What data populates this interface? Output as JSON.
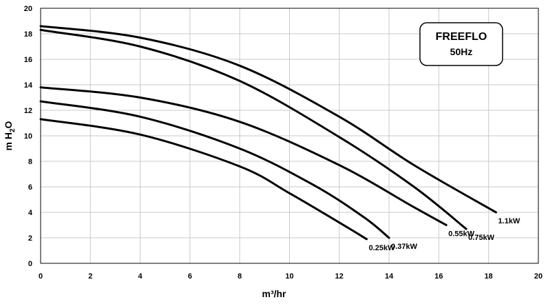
{
  "chart_data": {
    "type": "line",
    "title_box": {
      "line1": "FREEFLO",
      "line2": "50Hz"
    },
    "xlabel": "m³/hr",
    "ylabel": {
      "prefix": "m H",
      "sub": "2",
      "suffix": "O"
    },
    "xlim": [
      0,
      20
    ],
    "ylim": [
      0,
      20
    ],
    "xticks": [
      0,
      2,
      4,
      6,
      8,
      10,
      12,
      14,
      16,
      18,
      20
    ],
    "yticks": [
      0,
      2,
      4,
      6,
      8,
      10,
      12,
      14,
      16,
      18,
      20
    ],
    "grid": true,
    "series": [
      {
        "name": "1.1kW",
        "x": [
          0,
          4,
          8,
          12,
          15,
          18.3
        ],
        "y": [
          18.6,
          17.7,
          15.5,
          11.5,
          7.7,
          4.0
        ]
      },
      {
        "name": "0.75kW",
        "x": [
          0,
          4,
          8,
          12,
          15,
          17.1
        ],
        "y": [
          18.3,
          17.0,
          14.3,
          9.9,
          6.0,
          2.7
        ]
      },
      {
        "name": "0.55kW",
        "x": [
          0,
          4,
          8,
          12,
          15,
          16.3
        ],
        "y": [
          13.8,
          13.0,
          11.1,
          7.7,
          4.4,
          3.0
        ]
      },
      {
        "name": "0.37kW",
        "x": [
          0,
          4,
          8,
          11,
          13,
          14.0
        ],
        "y": [
          12.7,
          11.5,
          9.0,
          6.1,
          3.6,
          2.0
        ]
      },
      {
        "name": "0.25kW",
        "x": [
          0,
          4,
          8,
          10,
          12,
          13.1
        ],
        "y": [
          11.3,
          10.1,
          7.6,
          5.5,
          3.2,
          1.9
        ]
      }
    ]
  }
}
